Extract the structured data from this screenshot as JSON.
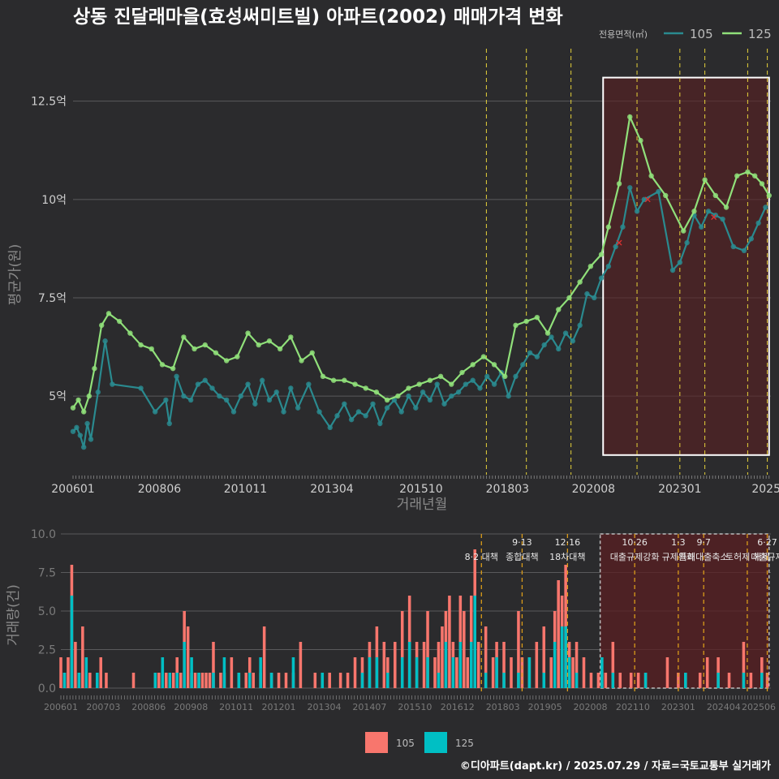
{
  "title": "상동 진달래마을(효성써미트빌) 아파트(2002) 매매가격 변화",
  "credit": "©디아파트(dapt.kr) / 2025.07.29 / 자료=국토교통부 실거래가",
  "colors": {
    "bg": "#2b2b2d",
    "grid": "#5a5a5c",
    "c105_line": "#2a8a8f",
    "c125_line": "#90e07a",
    "c105_bar": "#f8766d",
    "c125_bar": "#00bfc4",
    "policy": "#e6d23a",
    "policy_lower": "#d99b1a",
    "highlight": "#5a1f22",
    "highlight_border": "#ffffff",
    "text": "#cfcfcf",
    "marker": "#e03030"
  },
  "chart_data": [
    {
      "type": "line",
      "title": "상동 진달래마을(효성써미트빌) 아파트(2002) 매매가격 변화",
      "xlabel": "거래년월",
      "ylabel": "평균가(원)",
      "xlim": [
        2006.0,
        2025.55
      ],
      "ylim": [
        3.0,
        14.0
      ],
      "y_ticks": [
        5,
        7.5,
        10,
        12.5
      ],
      "y_tick_labels": [
        "5억",
        "7.5억",
        "10억",
        "12.5억"
      ],
      "x_ticks": [
        2006.0,
        2008.42,
        2010.83,
        2013.25,
        2015.75,
        2018.17,
        2020.58,
        2023.0,
        2025.0
      ],
      "x_tick_labels": [
        "200601",
        "200806",
        "201011",
        "201304",
        "201510",
        "201803",
        "202008",
        "202301",
        "2025"
      ],
      "legend_title": "전용면적(㎡)",
      "legend": [
        "105",
        "125"
      ],
      "legend_position": "top-right",
      "highlight_x": [
        2020.85,
        2025.5
      ],
      "highlight_y": [
        3.5,
        13.1
      ],
      "policy_lines": [
        2017.58,
        2018.7,
        2019.95,
        2021.8,
        2023.0,
        2023.7,
        2024.9,
        2025.45
      ],
      "series": [
        {
          "name": "105",
          "x": [
            2006.0,
            2006.1,
            2006.2,
            2006.3,
            2006.4,
            2006.5,
            2006.7,
            2006.9,
            2007.1,
            2007.9,
            2008.3,
            2008.6,
            2008.7,
            2008.9,
            2009.1,
            2009.3,
            2009.5,
            2009.7,
            2009.9,
            2010.1,
            2010.3,
            2010.5,
            2010.7,
            2010.9,
            2011.1,
            2011.3,
            2011.5,
            2011.7,
            2011.9,
            2012.1,
            2012.3,
            2012.6,
            2012.9,
            2013.2,
            2013.4,
            2013.6,
            2013.8,
            2014.0,
            2014.2,
            2014.4,
            2014.6,
            2014.8,
            2015.0,
            2015.2,
            2015.4,
            2015.6,
            2015.8,
            2016.0,
            2016.2,
            2016.4,
            2016.6,
            2016.8,
            2017.0,
            2017.2,
            2017.4,
            2017.6,
            2017.8,
            2018.0,
            2018.2,
            2018.4,
            2018.6,
            2018.8,
            2019.0,
            2019.2,
            2019.4,
            2019.6,
            2019.8,
            2020.0,
            2020.2,
            2020.4,
            2020.6,
            2020.8,
            2021.0,
            2021.2,
            2021.4,
            2021.6,
            2021.8,
            2022.0,
            2022.4,
            2022.8,
            2023.0,
            2023.2,
            2023.4,
            2023.6,
            2023.8,
            2024.0,
            2024.2,
            2024.5,
            2024.8,
            2025.0,
            2025.2,
            2025.4
          ],
          "y": [
            4.1,
            4.2,
            4.0,
            3.7,
            4.3,
            3.9,
            5.1,
            6.4,
            5.3,
            5.2,
            4.6,
            4.9,
            4.3,
            5.5,
            5.0,
            4.9,
            5.3,
            5.4,
            5.2,
            5.0,
            4.9,
            4.6,
            5.0,
            5.3,
            4.8,
            5.4,
            4.9,
            5.1,
            4.6,
            5.2,
            4.7,
            5.3,
            4.6,
            4.2,
            4.5,
            4.8,
            4.4,
            4.6,
            4.5,
            4.8,
            4.3,
            4.7,
            4.9,
            4.6,
            5.0,
            4.7,
            5.1,
            4.9,
            5.3,
            4.8,
            5.0,
            5.1,
            5.3,
            5.4,
            5.2,
            5.5,
            5.3,
            5.6,
            5.0,
            5.5,
            5.8,
            6.1,
            6.0,
            6.3,
            6.5,
            6.2,
            6.6,
            6.4,
            6.8,
            7.6,
            7.5,
            8.0,
            8.3,
            8.8,
            9.3,
            10.3,
            9.7,
            10.0,
            10.2,
            8.2,
            8.4,
            8.9,
            9.6,
            9.3,
            9.7,
            9.6,
            9.5,
            8.8,
            8.7,
            9.0,
            9.4,
            9.8
          ],
          "points_only": false
        },
        {
          "name": "125",
          "x": [
            2006.0,
            2006.15,
            2006.3,
            2006.45,
            2006.6,
            2006.8,
            2007.0,
            2007.3,
            2007.6,
            2007.9,
            2008.2,
            2008.5,
            2008.8,
            2009.1,
            2009.4,
            2009.7,
            2010.0,
            2010.3,
            2010.6,
            2010.9,
            2011.2,
            2011.5,
            2011.8,
            2012.1,
            2012.4,
            2012.7,
            2013.0,
            2013.3,
            2013.6,
            2013.9,
            2014.2,
            2014.5,
            2014.8,
            2015.1,
            2015.4,
            2015.7,
            2016.0,
            2016.3,
            2016.6,
            2016.9,
            2017.2,
            2017.5,
            2017.8,
            2018.1,
            2018.4,
            2018.7,
            2019.0,
            2019.3,
            2019.6,
            2019.9,
            2020.2,
            2020.5,
            2020.8,
            2021.0,
            2021.3,
            2021.6,
            2021.9,
            2022.2,
            2022.6,
            2023.1,
            2023.4,
            2023.7,
            2024.0,
            2024.3,
            2024.6,
            2024.9,
            2025.1,
            2025.3,
            2025.5
          ],
          "y": [
            4.7,
            4.9,
            4.6,
            5.0,
            5.7,
            6.8,
            7.1,
            6.9,
            6.6,
            6.3,
            6.2,
            5.8,
            5.7,
            6.5,
            6.2,
            6.3,
            6.1,
            5.9,
            6.0,
            6.6,
            6.3,
            6.4,
            6.2,
            6.5,
            5.9,
            6.1,
            5.5,
            5.4,
            5.4,
            5.3,
            5.2,
            5.1,
            4.9,
            5.0,
            5.2,
            5.3,
            5.4,
            5.5,
            5.3,
            5.6,
            5.8,
            6.0,
            5.8,
            5.5,
            6.8,
            6.9,
            7.0,
            6.6,
            7.2,
            7.5,
            7.9,
            8.3,
            8.6,
            9.3,
            10.4,
            12.1,
            11.5,
            10.6,
            10.1,
            9.2,
            9.7,
            10.5,
            10.1,
            9.8,
            10.6,
            10.7,
            10.6,
            10.4,
            10.1
          ],
          "points_only": false
        }
      ],
      "markers": [
        {
          "x": 2021.3,
          "y": 8.9
        },
        {
          "x": 2022.1,
          "y": 10.0
        },
        {
          "x": 2023.95,
          "y": 9.55
        }
      ]
    },
    {
      "type": "bar",
      "xlabel": "",
      "ylabel": "거래량(건)",
      "xlim": [
        2006.0,
        2025.55
      ],
      "ylim": [
        0,
        10
      ],
      "y_ticks": [
        0,
        2.5,
        5,
        7.5,
        10
      ],
      "y_tick_labels": [
        "0.0",
        "2.5",
        "5.0",
        "7.5",
        "10.0"
      ],
      "x_ticks": [
        2006.0,
        2007.17,
        2008.42,
        2009.58,
        2010.83,
        2012.0,
        2013.25,
        2014.5,
        2015.75,
        2016.92,
        2018.17,
        2019.33,
        2020.58,
        2021.75,
        2023.0,
        2024.25,
        2025.5
      ],
      "x_tick_labels": [
        "200601",
        "200703",
        "200806",
        "200908",
        "201011",
        "201201",
        "201304",
        "201407",
        "201510",
        "201612",
        "201803",
        "201905",
        "202008",
        "202110",
        "202301",
        "202404",
        "202506"
      ],
      "legend": [
        "105",
        "125"
      ],
      "legend_position": "bottom",
      "policy_labels": [
        {
          "x": 2017.58,
          "top": "",
          "bottom": "8·2 대책"
        },
        {
          "x": 2018.7,
          "top": "9·13",
          "bottom": "종합대책"
        },
        {
          "x": 2019.95,
          "top": "12·16",
          "bottom": "18차대책"
        },
        {
          "x": 2021.8,
          "top": "10·26",
          "bottom": "대출규제강화"
        },
        {
          "x": 2023.0,
          "top": "1·3",
          "bottom": "규제완화"
        },
        {
          "x": 2023.7,
          "top": "9·7",
          "bottom": "특례대출축소"
        },
        {
          "x": 2024.9,
          "top": "",
          "bottom": "토허제 해제"
        },
        {
          "x": 2025.45,
          "top": "6·27",
          "bottom": "대출규제"
        }
      ],
      "series": [
        {
          "name": "105",
          "x": [
            2006.0,
            2006.1,
            2006.2,
            2006.3,
            2006.4,
            2006.5,
            2006.6,
            2006.7,
            2006.8,
            2007.0,
            2007.1,
            2007.25,
            2008.0,
            2008.6,
            2008.7,
            2008.9,
            2009.0,
            2009.1,
            2009.2,
            2009.3,
            2009.4,
            2009.5,
            2009.6,
            2009.7,
            2009.8,
            2009.9,
            2010.0,
            2010.1,
            2010.2,
            2010.4,
            2010.5,
            2010.7,
            2010.9,
            2011.1,
            2011.2,
            2011.3,
            2011.5,
            2011.6,
            2011.8,
            2012.0,
            2012.2,
            2012.4,
            2012.6,
            2013.0,
            2013.2,
            2013.4,
            2013.7,
            2013.9,
            2014.1,
            2014.3,
            2014.5,
            2014.7,
            2014.9,
            2015.0,
            2015.2,
            2015.4,
            2015.6,
            2015.8,
            2016.0,
            2016.1,
            2016.3,
            2016.4,
            2016.5,
            2016.6,
            2016.7,
            2016.8,
            2016.9,
            2017.0,
            2017.1,
            2017.2,
            2017.3,
            2017.4,
            2017.5,
            2017.7,
            2017.9,
            2018.0,
            2018.2,
            2018.4,
            2018.6,
            2018.7,
            2018.9,
            2019.1,
            2019.3,
            2019.5,
            2019.6,
            2019.7,
            2019.8,
            2019.9,
            2020.0,
            2020.1,
            2020.2,
            2020.4,
            2020.6,
            2020.8,
            2020.9,
            2021.0,
            2021.2,
            2021.4,
            2021.7,
            2021.9,
            2022.1,
            2022.7,
            2023.0,
            2023.2,
            2023.6,
            2023.8,
            2024.1,
            2024.4,
            2024.8,
            2025.0,
            2025.3,
            2025.45
          ],
          "values": [
            2,
            1,
            2,
            8,
            3,
            1,
            4,
            1,
            1,
            1,
            2,
            1,
            1,
            1,
            1,
            1,
            1,
            1,
            2,
            1,
            5,
            4,
            1,
            1,
            1,
            1,
            1,
            1,
            3,
            1,
            1,
            2,
            1,
            1,
            2,
            1,
            1,
            4,
            1,
            1,
            1,
            1,
            3,
            1,
            1,
            1,
            1,
            1,
            2,
            2,
            3,
            4,
            3,
            2,
            3,
            5,
            6,
            3,
            3,
            5,
            2,
            3,
            4,
            5,
            6,
            3,
            2,
            6,
            5,
            2,
            6,
            9,
            3,
            4,
            2,
            3,
            3,
            2,
            5,
            2,
            2,
            3,
            4,
            2,
            5,
            7,
            6,
            8,
            3,
            2,
            3,
            2,
            1,
            1,
            1,
            1,
            3,
            1,
            1,
            1,
            1,
            2,
            1,
            1,
            1,
            2,
            2,
            1,
            3,
            1,
            2,
            1
          ],
          "stacked": true
        },
        {
          "name": "125",
          "x": [
            2006.1,
            2006.3,
            2006.5,
            2006.7,
            2007.0,
            2008.6,
            2008.8,
            2009.0,
            2009.2,
            2009.4,
            2009.6,
            2009.8,
            2010.2,
            2010.5,
            2010.9,
            2011.2,
            2011.5,
            2011.8,
            2012.4,
            2013.2,
            2014.3,
            2014.5,
            2014.7,
            2015.0,
            2015.4,
            2015.6,
            2015.8,
            2016.1,
            2016.4,
            2016.6,
            2016.8,
            2017.0,
            2017.3,
            2017.4,
            2017.7,
            2018.0,
            2018.2,
            2018.6,
            2018.9,
            2019.3,
            2019.6,
            2019.8,
            2019.9,
            2020.0,
            2020.2,
            2020.9,
            2021.2,
            2022.1,
            2023.2,
            2024.1,
            2024.8,
            2025.3
          ],
          "values": [
            1,
            6,
            1,
            2,
            1,
            1,
            2,
            1,
            1,
            3,
            2,
            1,
            1,
            2,
            1,
            1,
            2,
            1,
            2,
            1,
            1,
            2,
            2,
            1,
            2,
            3,
            2,
            2,
            1,
            3,
            2,
            3,
            3,
            6,
            1,
            2,
            1,
            1,
            2,
            1,
            3,
            4,
            4,
            2,
            1,
            2,
            1,
            1,
            1,
            1,
            1,
            1
          ],
          "stacked": true
        }
      ]
    }
  ]
}
